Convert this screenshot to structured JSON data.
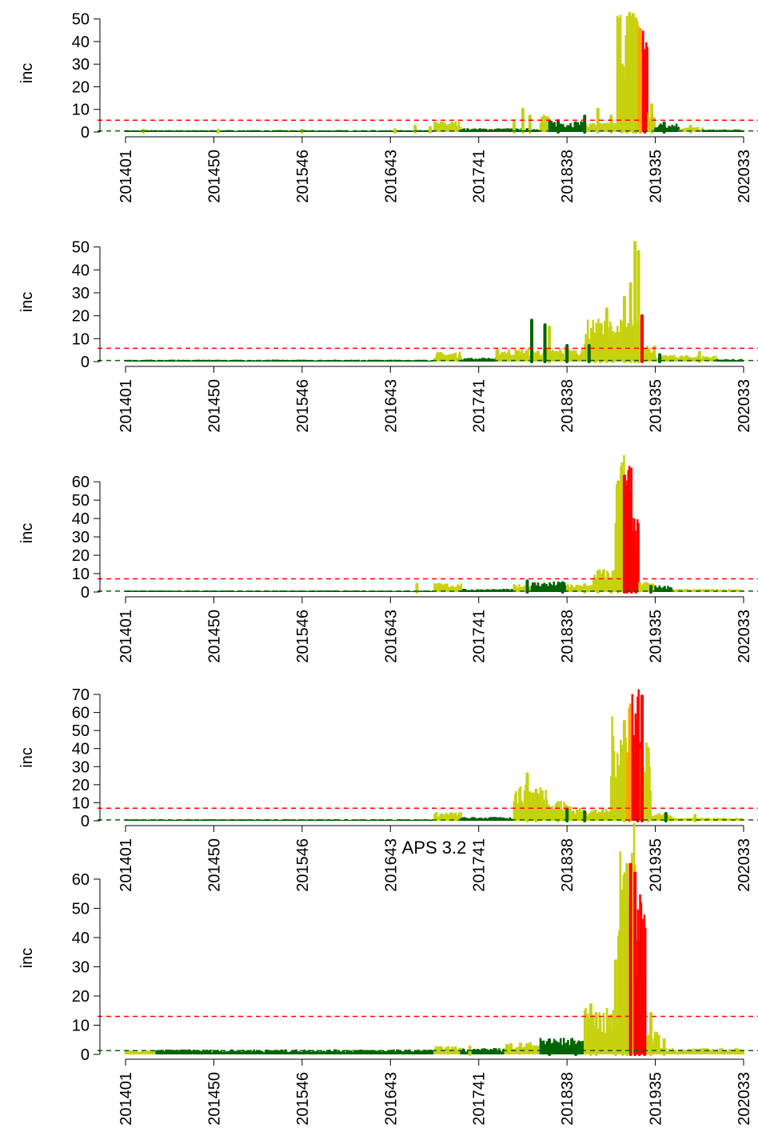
{
  "colors": {
    "background": "#ffffff",
    "green": "#006400",
    "yellow_green": "#c7d10f",
    "orange": "#ffa500",
    "red": "#ff0000",
    "threshold_line": "#ff0000",
    "baseline_line": "#006400"
  },
  "x_ticks": [
    "201401",
    "201450",
    "201546",
    "201643",
    "201741",
    "201838",
    "201935",
    "202033"
  ],
  "chart_data": [
    {
      "type": "bar",
      "title": "",
      "ylabel": "inc",
      "ylim": [
        0,
        52
      ],
      "yticks": [
        0,
        10,
        20,
        30,
        40,
        50
      ],
      "threshold": 5.2,
      "baseline": 0.5,
      "regions": [
        {
          "from": 0,
          "to": 350,
          "level": 0.6,
          "color": "green"
        },
        {
          "from": 350,
          "to": 380,
          "level": 3.5,
          "color": "yellow_green"
        },
        {
          "from": 380,
          "to": 470,
          "level": 1.2,
          "color": "green"
        },
        {
          "from": 470,
          "to": 480,
          "level": 6,
          "color": "yellow_green"
        },
        {
          "from": 480,
          "to": 520,
          "level": 3.5,
          "color": "green"
        },
        {
          "from": 520,
          "to": 557,
          "level": 3,
          "color": "yellow_green"
        },
        {
          "from": 557,
          "to": 581,
          "level": 40,
          "color": "yellow_green"
        },
        {
          "from": 581,
          "to": 585,
          "level": 46,
          "color": "orange"
        },
        {
          "from": 585,
          "to": 592,
          "level": 36,
          "color": "red"
        },
        {
          "from": 592,
          "to": 600,
          "level": 6,
          "color": "yellow_green"
        },
        {
          "from": 600,
          "to": 627,
          "level": 2.8,
          "color": "green"
        },
        {
          "from": 627,
          "to": 654,
          "level": 1.5,
          "color": "yellow_green"
        },
        {
          "from": 654,
          "to": 700,
          "level": 0.8,
          "color": "green"
        }
      ],
      "peaks": [
        {
          "x": 20,
          "y": 0.8,
          "color": "yellow_green"
        },
        {
          "x": 105,
          "y": 0.8,
          "color": "yellow_green"
        },
        {
          "x": 200,
          "y": 0.8,
          "color": "yellow_green"
        },
        {
          "x": 305,
          "y": 1,
          "color": "yellow_green"
        },
        {
          "x": 328,
          "y": 2.5,
          "color": "yellow_green"
        },
        {
          "x": 345,
          "y": 2,
          "color": "yellow_green"
        },
        {
          "x": 440,
          "y": 5,
          "color": "yellow_green"
        },
        {
          "x": 450,
          "y": 10,
          "color": "yellow_green"
        },
        {
          "x": 458,
          "y": 7,
          "color": "yellow_green"
        },
        {
          "x": 490,
          "y": 5,
          "color": "green"
        },
        {
          "x": 520,
          "y": 7,
          "color": "green"
        },
        {
          "x": 535,
          "y": 10,
          "color": "yellow_green"
        },
        {
          "x": 550,
          "y": 7,
          "color": "yellow_green"
        },
        {
          "x": 562,
          "y": 25,
          "color": "yellow_green"
        },
        {
          "x": 568,
          "y": 35,
          "color": "yellow_green"
        },
        {
          "x": 575,
          "y": 52,
          "color": "yellow_green"
        },
        {
          "x": 578,
          "y": 50,
          "color": "yellow_green"
        },
        {
          "x": 583,
          "y": 45,
          "color": "orange"
        },
        {
          "x": 588,
          "y": 36,
          "color": "red"
        },
        {
          "x": 596,
          "y": 12,
          "color": "yellow_green"
        },
        {
          "x": 610,
          "y": 4,
          "color": "green"
        },
        {
          "x": 640,
          "y": 2.5,
          "color": "yellow_green"
        }
      ]
    },
    {
      "type": "bar",
      "title": "",
      "ylabel": "inc",
      "ylim": [
        0,
        52
      ],
      "yticks": [
        0,
        10,
        20,
        30,
        40,
        50
      ],
      "threshold": 5.8,
      "baseline": 0.5,
      "regions": [
        {
          "from": 0,
          "to": 350,
          "level": 0.6,
          "color": "green"
        },
        {
          "from": 350,
          "to": 380,
          "level": 3,
          "color": "yellow_green"
        },
        {
          "from": 380,
          "to": 420,
          "level": 1.2,
          "color": "green"
        },
        {
          "from": 420,
          "to": 520,
          "level": 4,
          "color": "yellow_green"
        },
        {
          "from": 520,
          "to": 585,
          "level": 13,
          "color": "yellow_green"
        },
        {
          "from": 585,
          "to": 600,
          "level": 6,
          "color": "yellow_green"
        },
        {
          "from": 600,
          "to": 670,
          "level": 2,
          "color": "yellow_green"
        },
        {
          "from": 670,
          "to": 700,
          "level": 0.8,
          "color": "green"
        }
      ],
      "peaks": [
        {
          "x": 460,
          "y": 18,
          "color": "green"
        },
        {
          "x": 475,
          "y": 16,
          "color": "green"
        },
        {
          "x": 480,
          "y": 15,
          "color": "yellow_green"
        },
        {
          "x": 500,
          "y": 7,
          "color": "green"
        },
        {
          "x": 525,
          "y": 7,
          "color": "green"
        },
        {
          "x": 532,
          "y": 12,
          "color": "yellow_green"
        },
        {
          "x": 538,
          "y": 16,
          "color": "yellow_green"
        },
        {
          "x": 545,
          "y": 23,
          "color": "yellow_green"
        },
        {
          "x": 552,
          "y": 10,
          "color": "yellow_green"
        },
        {
          "x": 565,
          "y": 28,
          "color": "yellow_green"
        },
        {
          "x": 572,
          "y": 34,
          "color": "yellow_green"
        },
        {
          "x": 577,
          "y": 52,
          "color": "yellow_green"
        },
        {
          "x": 581,
          "y": 48,
          "color": "yellow_green"
        },
        {
          "x": 585,
          "y": 20,
          "color": "red"
        },
        {
          "x": 605,
          "y": 3,
          "color": "green"
        },
        {
          "x": 650,
          "y": 4,
          "color": "yellow_green"
        }
      ]
    },
    {
      "type": "bar",
      "title": "",
      "ylabel": "inc",
      "ylim": [
        0,
        64
      ],
      "yticks": [
        0,
        10,
        20,
        30,
        40,
        50,
        60
      ],
      "threshold": 7.2,
      "baseline": 0.5,
      "regions": [
        {
          "from": 0,
          "to": 350,
          "level": 0.6,
          "color": "green"
        },
        {
          "from": 350,
          "to": 380,
          "level": 3.5,
          "color": "yellow_green"
        },
        {
          "from": 380,
          "to": 440,
          "level": 1.2,
          "color": "green"
        },
        {
          "from": 440,
          "to": 460,
          "level": 3,
          "color": "yellow_green"
        },
        {
          "from": 460,
          "to": 500,
          "level": 4,
          "color": "green"
        },
        {
          "from": 500,
          "to": 530,
          "level": 3,
          "color": "yellow_green"
        },
        {
          "from": 530,
          "to": 555,
          "level": 9,
          "color": "yellow_green"
        },
        {
          "from": 555,
          "to": 567,
          "level": 55,
          "color": "yellow_green"
        },
        {
          "from": 567,
          "to": 575,
          "level": 50,
          "color": "red"
        },
        {
          "from": 575,
          "to": 582,
          "level": 28,
          "color": "red"
        },
        {
          "from": 582,
          "to": 600,
          "level": 4,
          "color": "yellow_green"
        },
        {
          "from": 600,
          "to": 620,
          "level": 2.5,
          "color": "green"
        },
        {
          "from": 620,
          "to": 700,
          "level": 1.2,
          "color": "yellow_green"
        }
      ],
      "peaks": [
        {
          "x": 330,
          "y": 4,
          "color": "yellow_green"
        },
        {
          "x": 455,
          "y": 6,
          "color": "green"
        },
        {
          "x": 495,
          "y": 5,
          "color": "green"
        },
        {
          "x": 520,
          "y": 4,
          "color": "yellow_green"
        },
        {
          "x": 535,
          "y": 11,
          "color": "yellow_green"
        },
        {
          "x": 550,
          "y": 6,
          "color": "yellow_green"
        },
        {
          "x": 558,
          "y": 60,
          "color": "yellow_green"
        },
        {
          "x": 565,
          "y": 63,
          "color": "red"
        },
        {
          "x": 568,
          "y": 57,
          "color": "red"
        },
        {
          "x": 573,
          "y": 40,
          "color": "red"
        },
        {
          "x": 578,
          "y": 20,
          "color": "red"
        },
        {
          "x": 595,
          "y": 3,
          "color": "green"
        }
      ]
    },
    {
      "type": "bar",
      "title": "",
      "ylabel": "inc",
      "ylim": [
        0,
        70
      ],
      "yticks": [
        0,
        10,
        20,
        30,
        40,
        50,
        60,
        70
      ],
      "threshold": 7,
      "baseline": 0.5,
      "regions": [
        {
          "from": 0,
          "to": 350,
          "level": 0.6,
          "color": "green"
        },
        {
          "from": 350,
          "to": 380,
          "level": 3.5,
          "color": "yellow_green"
        },
        {
          "from": 380,
          "to": 440,
          "level": 1.5,
          "color": "green"
        },
        {
          "from": 440,
          "to": 480,
          "level": 14,
          "color": "yellow_green"
        },
        {
          "from": 480,
          "to": 505,
          "level": 8,
          "color": "yellow_green"
        },
        {
          "from": 505,
          "to": 550,
          "level": 5,
          "color": "yellow_green"
        },
        {
          "from": 550,
          "to": 568,
          "level": 40,
          "color": "yellow_green"
        },
        {
          "from": 568,
          "to": 574,
          "level": 55,
          "color": "orange"
        },
        {
          "from": 574,
          "to": 584,
          "level": 54,
          "color": "red"
        },
        {
          "from": 584,
          "to": 595,
          "level": 30,
          "color": "yellow_green"
        },
        {
          "from": 595,
          "to": 620,
          "level": 3,
          "color": "yellow_green"
        },
        {
          "from": 620,
          "to": 700,
          "level": 1.2,
          "color": "yellow_green"
        }
      ],
      "peaks": [
        {
          "x": 455,
          "y": 26,
          "color": "yellow_green"
        },
        {
          "x": 465,
          "y": 17,
          "color": "yellow_green"
        },
        {
          "x": 490,
          "y": 10,
          "color": "yellow_green"
        },
        {
          "x": 500,
          "y": 6,
          "color": "green"
        },
        {
          "x": 520,
          "y": 5,
          "color": "green"
        },
        {
          "x": 565,
          "y": 55,
          "color": "yellow_green"
        },
        {
          "x": 571,
          "y": 62,
          "color": "orange"
        },
        {
          "x": 580,
          "y": 55,
          "color": "red"
        },
        {
          "x": 585,
          "y": 69,
          "color": "red"
        },
        {
          "x": 592,
          "y": 40,
          "color": "yellow_green"
        },
        {
          "x": 612,
          "y": 4,
          "color": "green"
        },
        {
          "x": 645,
          "y": 3,
          "color": "yellow_green"
        }
      ]
    },
    {
      "type": "bar",
      "title": "APS 3.2",
      "ylabel": "inc",
      "ylim": [
        0,
        66
      ],
      "yticks": [
        0,
        10,
        20,
        30,
        40,
        50,
        60
      ],
      "threshold": 13,
      "baseline": 1.3,
      "regions": [
        {
          "from": 0,
          "to": 35,
          "level": 1,
          "color": "yellow_green"
        },
        {
          "from": 35,
          "to": 350,
          "level": 1.2,
          "color": "green"
        },
        {
          "from": 350,
          "to": 380,
          "level": 2,
          "color": "yellow_green"
        },
        {
          "from": 380,
          "to": 430,
          "level": 1.5,
          "color": "green"
        },
        {
          "from": 430,
          "to": 470,
          "level": 3,
          "color": "yellow_green"
        },
        {
          "from": 470,
          "to": 520,
          "level": 4,
          "color": "green"
        },
        {
          "from": 520,
          "to": 558,
          "level": 11,
          "color": "yellow_green"
        },
        {
          "from": 558,
          "to": 578,
          "level": 55,
          "color": "yellow_green"
        },
        {
          "from": 578,
          "to": 590,
          "level": 45,
          "color": "red"
        },
        {
          "from": 590,
          "to": 605,
          "level": 6,
          "color": "yellow_green"
        },
        {
          "from": 605,
          "to": 700,
          "level": 1.5,
          "color": "yellow_green"
        }
      ],
      "peaks": [
        {
          "x": 390,
          "y": 2.5,
          "color": "yellow_green"
        },
        {
          "x": 480,
          "y": 5,
          "color": "green"
        },
        {
          "x": 510,
          "y": 3,
          "color": "green"
        },
        {
          "x": 527,
          "y": 17,
          "color": "yellow_green"
        },
        {
          "x": 533,
          "y": 14,
          "color": "yellow_green"
        },
        {
          "x": 555,
          "y": 32,
          "color": "yellow_green"
        },
        {
          "x": 563,
          "y": 56,
          "color": "yellow_green"
        },
        {
          "x": 568,
          "y": 65,
          "color": "yellow_green"
        },
        {
          "x": 572,
          "y": 65,
          "color": "red"
        },
        {
          "x": 577,
          "y": 62,
          "color": "red"
        },
        {
          "x": 582,
          "y": 38,
          "color": "red"
        },
        {
          "x": 588,
          "y": 24,
          "color": "red"
        },
        {
          "x": 595,
          "y": 14,
          "color": "yellow_green"
        },
        {
          "x": 610,
          "y": 5,
          "color": "yellow_green"
        }
      ]
    }
  ]
}
